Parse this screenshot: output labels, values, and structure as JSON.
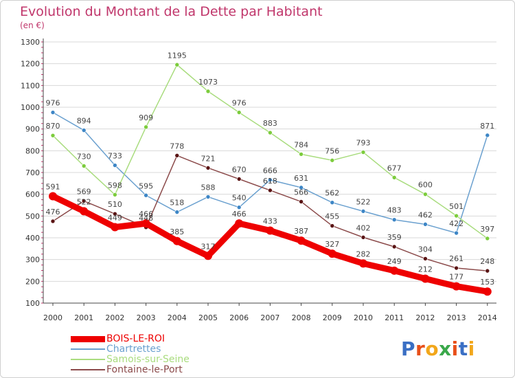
{
  "header": {
    "title": "Evolution du Montant de la Dette par Habitant",
    "unit": "(en €)"
  },
  "logo": {
    "text": "Proxiti",
    "colors": [
      "#3a6fc4",
      "#e8501a",
      "#f2a71b",
      "#3aa84a",
      "#e8501a",
      "#3a6fc4",
      "#f2a71b"
    ]
  },
  "colors": {
    "title": "#c0366b",
    "grid": "#d8d8d8",
    "axis": "#444444",
    "tick_mark": "#c0366b"
  },
  "chart_data": {
    "type": "line",
    "title": "Evolution du Montant de la Dette par Habitant",
    "subtitle": "(en €)",
    "xlabel": "",
    "ylabel": "",
    "x": [
      "2000",
      "2001",
      "2002",
      "2003",
      "2004",
      "2005",
      "2006",
      "2007",
      "2008",
      "2009",
      "2010",
      "2011",
      "2012",
      "2013",
      "2014"
    ],
    "ylim": [
      100,
      1300
    ],
    "yticks": [
      100,
      200,
      300,
      400,
      500,
      600,
      700,
      800,
      900,
      1000,
      1100,
      1200,
      1300
    ],
    "grid": "horizontal",
    "legend": "bottom-left",
    "series": [
      {
        "name": "BOIS-LE-ROI",
        "color": "#ee0000",
        "marker": "#ee0000",
        "bold": true,
        "values": [
          591,
          522,
          449,
          466,
          385,
          317,
          466,
          433,
          387,
          327,
          282,
          249,
          212,
          177,
          153
        ]
      },
      {
        "name": "Chartrettes",
        "color": "#6aa0cf",
        "marker": "#3d86c6",
        "bold": false,
        "values": [
          976,
          894,
          733,
          595,
          518,
          588,
          540,
          666,
          631,
          562,
          522,
          483,
          462,
          422,
          871
        ]
      },
      {
        "name": "Samois-sur-Seine",
        "color": "#a9dc7e",
        "marker": "#7ccc3c",
        "bold": false,
        "values": [
          870,
          730,
          598,
          909,
          1195,
          1073,
          976,
          883,
          784,
          756,
          793,
          677,
          600,
          501,
          397
        ]
      },
      {
        "name": "Fontaine-le-Port",
        "color": "#8b4a4a",
        "marker": "#5a1414",
        "bold": false,
        "values": [
          476,
          569,
          510,
          448,
          778,
          721,
          670,
          618,
          566,
          455,
          402,
          359,
          304,
          261,
          248
        ]
      }
    ]
  }
}
